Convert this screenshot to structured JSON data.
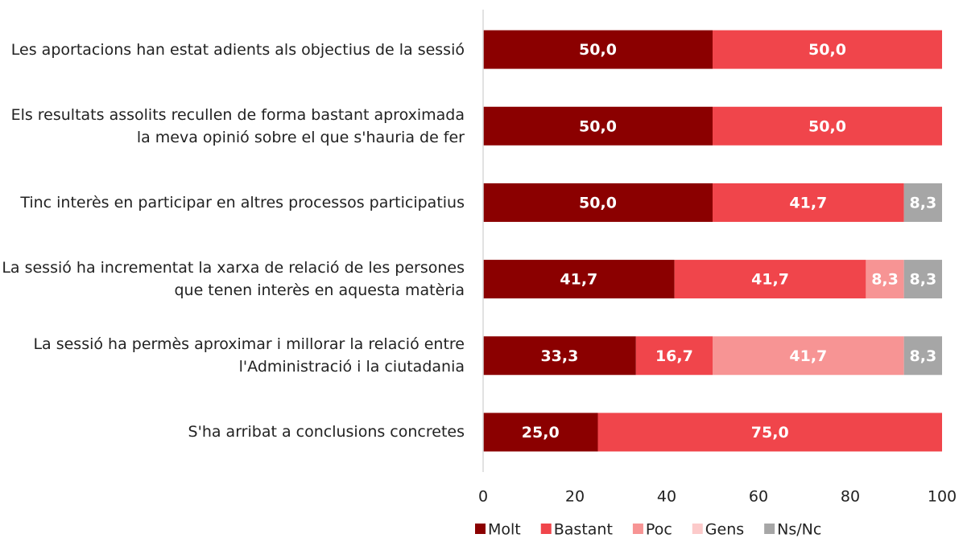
{
  "chart_data": {
    "type": "stacked_barh",
    "categories": [
      "Les aportacions han estat adients als objectius de la sessió",
      "Els resultats assolits recullen de forma bastant aproximada la meva opinió sobre el que s'hauria de fer",
      "Tinc interès en participar en altres processos participatius",
      "La sessió ha incrementat la xarxa de relació de les persones que tenen interès en aquesta matèria",
      "La sessió ha permès aproximar i millorar la relació entre l'Administració i la ciutadania",
      "S'ha arribat a conclusions concretes"
    ],
    "series": [
      {
        "name": "Molt",
        "color": "#8b0000",
        "values": [
          50,
          50,
          50,
          41.7,
          33.3,
          25
        ],
        "value_labels": [
          "50,0",
          "50,0",
          "50,0",
          "41,7",
          "33,3",
          "25,0"
        ]
      },
      {
        "name": "Bastant",
        "color": "#f0454b",
        "values": [
          50,
          50,
          41.7,
          41.7,
          16.7,
          75
        ],
        "value_labels": [
          "50,0",
          "50,0",
          "41,7",
          "41,7",
          "16,7",
          "75,0"
        ]
      },
      {
        "name": "Poc",
        "color": "#f79494",
        "values": [
          0,
          0,
          0,
          8.3,
          41.7,
          0
        ],
        "value_labels": [
          null,
          null,
          null,
          "8,3",
          "41,7",
          null
        ]
      },
      {
        "name": "Gens",
        "color": "#fccaca",
        "values": [
          0,
          0,
          0,
          0,
          0,
          0
        ],
        "value_labels": [
          null,
          null,
          null,
          null,
          null,
          null
        ]
      },
      {
        "name": "Ns/Nc",
        "color": "#a6a6a6",
        "values": [
          0,
          0,
          8.3,
          8.3,
          8.3,
          0
        ],
        "value_labels": [
          null,
          null,
          "8,3",
          "8,3",
          "8,3",
          null
        ]
      }
    ],
    "xlim": [
      0,
      100
    ],
    "xticks": [
      0,
      20,
      40,
      60,
      80,
      100
    ],
    "legend": "bottom"
  }
}
